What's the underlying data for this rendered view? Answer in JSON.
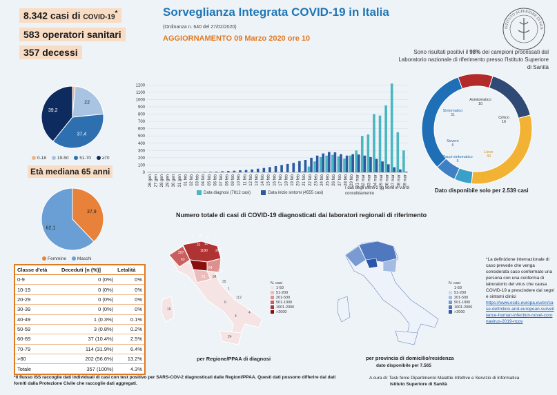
{
  "header": {
    "title": "Sorveglianza Integrata COVID-19 in Italia",
    "ordinanza": "(Ordinanza n. 640 del 27/02/2020)",
    "update": "AGGIORNAMENTO 09 Marzo 2020 ore 10"
  },
  "stats": {
    "cases": "8.342 casi di",
    "cases_suffix": "COVID-19",
    "cases_mark": "*",
    "operators": "583 operatori sanitari",
    "deaths": "357 decessi"
  },
  "age_pie_legend": [
    "0-18",
    "19-50",
    "51-70",
    "≥70"
  ],
  "eta_mediana": "Età mediana 65 anni",
  "sex_legend": [
    "Femmine",
    "Maschi"
  ],
  "age_table": {
    "headers": [
      "Classe d'età",
      "Deceduti [n (%)]",
      "Letalità"
    ],
    "rows": [
      [
        "0-9",
        "0 (0%)",
        "0%"
      ],
      [
        "10-19",
        "0 (0%)",
        "0%"
      ],
      [
        "20-29",
        "0 (0%)",
        "0%"
      ],
      [
        "30-39",
        "0 (0%)",
        "0%"
      ],
      [
        "40-49",
        "1 (0.3%)",
        "0.1%"
      ],
      [
        "50-59",
        "3 (0.8%)",
        "0.2%"
      ],
      [
        "60-69",
        "37 (10.4%)",
        "2.5%"
      ],
      [
        "70-79",
        "114 (31.9%)",
        "6.4%"
      ],
      [
        ">80",
        "202 (56.6%)",
        "13.2%"
      ],
      [
        "Totale",
        "357 (100%)",
        "4.3%"
      ]
    ]
  },
  "right_note_a": "Sono risultati positivi il ",
  "right_note_b": "98%",
  "right_note_c": " dei campioni processati dal Laboratorio nazionale di riferimento presso l'Istituto Superiore di Sanità",
  "logo_text": "ISTITUTO SUPERIORE DI SANITÀ",
  "dato_note": "Dato disponibile solo per 2.539 casi",
  "chart_legend": {
    "diagnosi": "Data diagnosi (7812 casi)",
    "sintomi": "Data inizio sintomi (4555 casi)"
  },
  "chart_note": "I dati degli ultimi 2 gg sono in via di consolidamento",
  "maps": {
    "title": "Numero totale di casi di COVID-19 diagnosticati dai laboratori regionali di riferimento",
    "left_caption": "per Regione/PPAA di diagnosi",
    "right_caption": "per provincia di domicilio/residenza",
    "right_sub": "dato disponibile per 7.565",
    "legend_title": "N. casi",
    "left_legend": [
      "1-50",
      "51-200",
      "201-500",
      "501-1000",
      "1001-2000",
      ">2000"
    ],
    "right_legend": [
      "1-50",
      "51-200",
      "201-500",
      "501-1000",
      "1001-2000",
      ">2000"
    ],
    "left_colors": [
      "#f6e3e3",
      "#ebbcbc",
      "#dc9090",
      "#c95f5f",
      "#b03333",
      "#8a0e0e"
    ],
    "right_colors": [
      "#eef2fa",
      "#cdd9ef",
      "#a5bce2",
      "#7a9bd2",
      "#4f78bf",
      "#2a55a8"
    ],
    "region_labels": [
      "2",
      "25",
      "5",
      "10",
      "21",
      "207",
      "5",
      "1180",
      "267",
      "63",
      "64",
      "206",
      "21",
      "84",
      "35",
      "1",
      "112",
      "6",
      "4",
      "4",
      "16",
      "24"
    ],
    "side_note": "*La definizione internazionale di caso prevede che venga considerata caso confermato una persona con una conferma di laboratorio del virus che causa COVID-19 a prescindere dai segni e sintomi clinici",
    "side_link": "https://www.ecdc.europa.eu/en/case-definition-and-european-surveillance-human-infection-novel-coronavirus-2019-ncov"
  },
  "footer": "*Il flusso ISS raccoglie dati individuali di casi con test positivo per SARS-COV-2 diagnosticati dalle Regioni/PPAA. Questi dati possono differire dai dati forniti dalla Protezione Civile che raccoglie dati aggregati.",
  "credits_a": "A cura di: Task force Dipartimento Malattie Infettive e Servizio di Informatica",
  "credits_b": "Istituto Superiore di Sanità",
  "chart_data": [
    {
      "type": "pie",
      "title": "",
      "categories": [
        "0-18",
        "19-50",
        "51-70",
        "≥70"
      ],
      "values": [
        1.4,
        22.0,
        37.4,
        39.2
      ],
      "colors": [
        "#f0b58a",
        "#a9c4e3",
        "#2e6fb0",
        "#0d2b5e"
      ]
    },
    {
      "type": "pie",
      "title": "",
      "categories": [
        "Femmine",
        "Maschi"
      ],
      "values": [
        37.9,
        62.1
      ],
      "colors": [
        "#e8823a",
        "#6a9fd6"
      ]
    },
    {
      "type": "bar",
      "title": "",
      "categories": [
        "26 gen",
        "27 gen",
        "28 gen",
        "29 gen",
        "30 gen",
        "31 gen",
        "01 feb",
        "02 feb",
        "03 feb",
        "04 feb",
        "05 feb",
        "06 feb",
        "07 feb",
        "08 feb",
        "09 feb",
        "10 feb",
        "11 feb",
        "12 feb",
        "13 feb",
        "14 feb",
        "15 feb",
        "16 feb",
        "17 feb",
        "18 feb",
        "19 feb",
        "20 feb",
        "21 feb",
        "22 feb",
        "23 feb",
        "24 feb",
        "25 feb",
        "26 feb",
        "27 feb",
        "28 feb",
        "29 feb",
        "01 mar",
        "02 mar",
        "03 mar",
        "04 mar",
        "05 mar",
        "06 mar",
        "07 mar",
        "08 mar",
        "09 mar"
      ],
      "series": [
        {
          "name": "Data diagnosi (7812 casi)",
          "color": "#49b6c1",
          "values": [
            0,
            0,
            0,
            0,
            0,
            0,
            0,
            0,
            0,
            0,
            0,
            0,
            0,
            0,
            0,
            0,
            0,
            0,
            0,
            0,
            0,
            0,
            0,
            0,
            0,
            5,
            15,
            80,
            150,
            210,
            230,
            240,
            220,
            190,
            230,
            300,
            500,
            520,
            800,
            780,
            920,
            1220,
            550,
            300
          ]
        },
        {
          "name": "Data inizio sintomi (4555 casi)",
          "color": "#2c5aa0",
          "values": [
            1,
            0,
            1,
            0,
            2,
            1,
            2,
            3,
            4,
            6,
            8,
            10,
            14,
            18,
            22,
            28,
            32,
            40,
            50,
            60,
            72,
            85,
            100,
            115,
            130,
            155,
            170,
            200,
            230,
            260,
            280,
            275,
            250,
            230,
            250,
            245,
            230,
            210,
            185,
            150,
            110,
            70,
            40,
            10
          ]
        }
      ],
      "ylim": [
        0,
        1250
      ],
      "yticks": [
        0,
        100,
        200,
        300,
        400,
        500,
        600,
        700,
        800,
        900,
        1000,
        1100,
        1200
      ]
    },
    {
      "type": "pie",
      "title": "",
      "categories": [
        "Asintomatico",
        "Critico",
        "Lieve",
        "Pauci-sintomatico",
        "Severo",
        "Sintomatico"
      ],
      "values": [
        10,
        16,
        30,
        5,
        6,
        31
      ],
      "labels": [
        "Asintomatico 10",
        "Critico 16",
        "Lieve 30",
        "Pauci-sintomatico 5",
        "Severo 6",
        "Sintomatico 31"
      ],
      "colors": [
        "#b22a2a",
        "#2e4a75",
        "#f2b233",
        "#3aa0c8",
        "#3f7fc4",
        "#1e6fb5"
      ]
    }
  ]
}
